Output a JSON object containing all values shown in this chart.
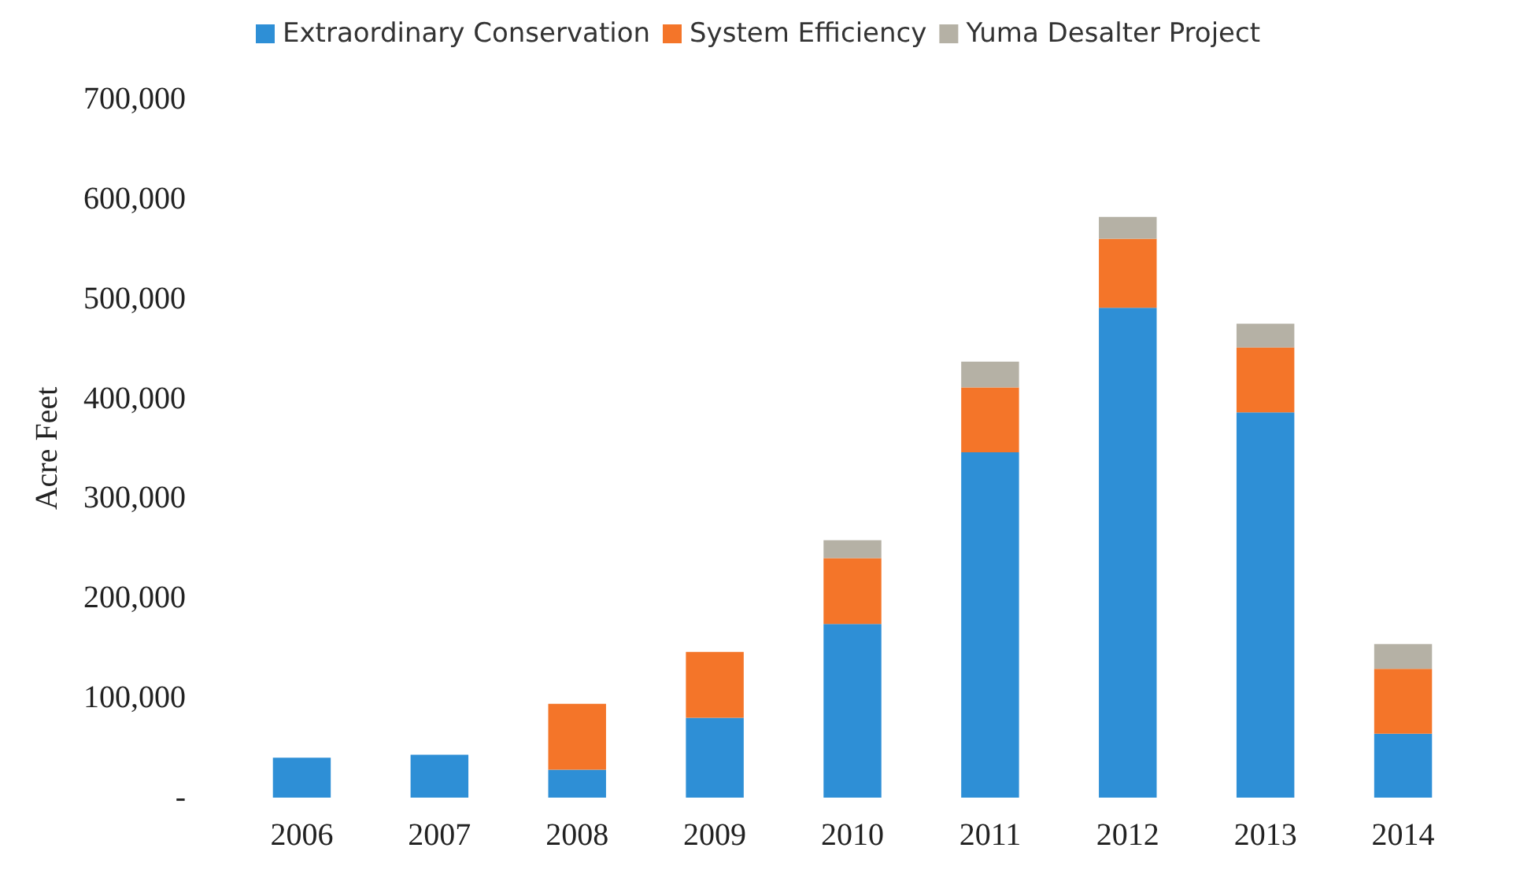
{
  "chart_data": {
    "type": "bar",
    "stacked": true,
    "ylabel": "Acre Feet",
    "legend": "top",
    "grid": false,
    "categories": [
      "2006",
      "2007",
      "2008",
      "2009",
      "2010",
      "2011",
      "2012",
      "2013",
      "2014"
    ],
    "ylim": [
      0,
      700000
    ],
    "yticks": [
      {
        "value": 0,
        "label": "-"
      },
      {
        "value": 100000,
        "label": "100,000"
      },
      {
        "value": 200000,
        "label": "200,000"
      },
      {
        "value": 300000,
        "label": "300,000"
      },
      {
        "value": 400000,
        "label": "400,000"
      },
      {
        "value": 500000,
        "label": "500,000"
      },
      {
        "value": 600000,
        "label": "600,000"
      },
      {
        "value": 700000,
        "label": "700,000"
      }
    ],
    "series": [
      {
        "name": "Extraordinary Conservation",
        "color": "#2e8fd6",
        "values": [
          40000,
          43000,
          28000,
          80000,
          174000,
          346000,
          491000,
          386000,
          64000
        ]
      },
      {
        "name": "System Efficiency",
        "color": "#f47529",
        "values": [
          null,
          null,
          66000,
          66000,
          66000,
          65000,
          69000,
          65000,
          65000
        ]
      },
      {
        "name": "Yuma Desalter Project",
        "color": "#b5b1a5",
        "values": [
          null,
          null,
          null,
          null,
          18000,
          26000,
          22000,
          24000,
          25000
        ]
      }
    ]
  }
}
